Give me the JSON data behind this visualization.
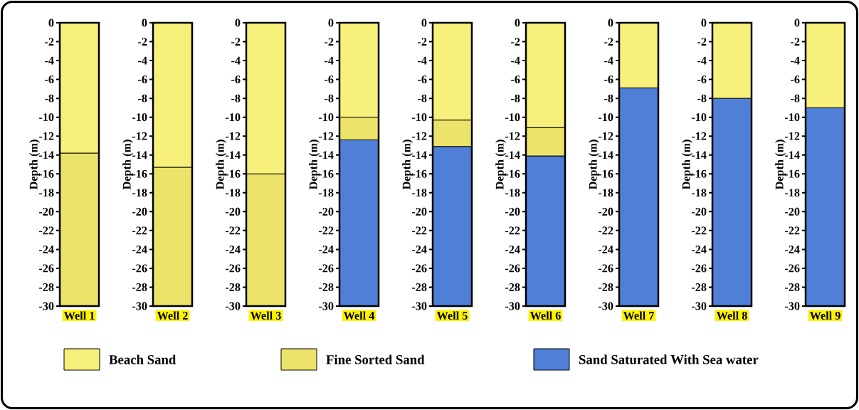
{
  "chart_data": [
    {
      "type": "bar",
      "stacked": true,
      "categories": [
        "Well 1"
      ],
      "ylabel": "Depth (m)",
      "ylim": [
        -30,
        0
      ],
      "yticks": [
        0,
        -2,
        -4,
        -6,
        -8,
        -10,
        -12,
        -14,
        -16,
        -18,
        -20,
        -22,
        -24,
        -26,
        -28,
        -30
      ],
      "series": [
        {
          "color": "#f7f07a",
          "values": [
            -13.8
          ]
        },
        {
          "color": "#ece36a",
          "values": [
            -16.2
          ]
        },
        {
          "color": "#4f7fd6",
          "values": [
            null
          ]
        }
      ]
    },
    {
      "type": "bar",
      "stacked": true,
      "categories": [
        "Well 2"
      ],
      "ylabel": "Depth (m)",
      "ylim": [
        -30,
        0
      ],
      "yticks": [
        0,
        -2,
        -4,
        -6,
        -8,
        -10,
        -12,
        -14,
        -16,
        -18,
        -20,
        -22,
        -24,
        -26,
        -28,
        -30
      ],
      "series": [
        {
          "color": "#f7f07a",
          "values": [
            -15.3
          ]
        },
        {
          "color": "#ece36a",
          "values": [
            -14.7
          ]
        },
        {
          "color": "#4f7fd6",
          "values": [
            null
          ]
        }
      ]
    },
    {
      "type": "bar",
      "stacked": true,
      "categories": [
        "Well 3"
      ],
      "ylabel": "Depth (m)",
      "ylim": [
        -30,
        0
      ],
      "yticks": [
        0,
        -2,
        -4,
        -6,
        -8,
        -10,
        -12,
        -14,
        -16,
        -18,
        -20,
        -22,
        -24,
        -26,
        -28,
        -30
      ],
      "series": [
        {
          "color": "#f7f07a",
          "values": [
            -16
          ]
        },
        {
          "color": "#ece36a",
          "values": [
            -14
          ]
        },
        {
          "color": "#4f7fd6",
          "values": [
            null
          ]
        }
      ]
    },
    {
      "type": "bar",
      "stacked": true,
      "legend": "bottom",
      "categories": [
        "Well 4"
      ],
      "ylabel": "Depth (m)",
      "ylim": [
        -30,
        0
      ],
      "yticks": [
        0,
        -2,
        -4,
        -6,
        -8,
        -10,
        -12,
        -14,
        -16,
        -18,
        -20,
        -22,
        -24,
        -26,
        -28,
        -30
      ],
      "series": [
        {
          "name": "Beach Sand",
          "color": "#f7f07a",
          "values": [
            -10
          ]
        },
        {
          "name": "Fine Sorted Sand",
          "color": "#ece36a",
          "values": [
            -2.4
          ]
        },
        {
          "name": "Sand Saturated With Sea water",
          "color": "#4f7fd6",
          "values": [
            -17.6
          ]
        }
      ]
    },
    {
      "type": "bar",
      "stacked": true,
      "categories": [
        "Well 5"
      ],
      "ylabel": "Depth (m)",
      "ylim": [
        -30,
        0
      ],
      "yticks": [
        0,
        -2,
        -4,
        -6,
        -8,
        -10,
        -12,
        -14,
        -16,
        -18,
        -20,
        -22,
        -24,
        -26,
        -28,
        -30
      ],
      "series": [
        {
          "color": "#f7f07a",
          "values": [
            -10.3
          ]
        },
        {
          "color": "#ece36a",
          "values": [
            -2.8
          ]
        },
        {
          "color": "#4f7fd6",
          "values": [
            -16.9
          ]
        }
      ]
    },
    {
      "type": "bar",
      "stacked": true,
      "categories": [
        "Well 6"
      ],
      "ylabel": "Depth (m)",
      "ylim": [
        -30,
        0
      ],
      "yticks": [
        0,
        -2,
        -4,
        -6,
        -8,
        -10,
        -12,
        -14,
        -16,
        -18,
        -20,
        -22,
        -24,
        -26,
        -28,
        -30
      ],
      "series": [
        {
          "color": "#f7f07a",
          "values": [
            -11.1
          ]
        },
        {
          "color": "#ece36a",
          "values": [
            -3
          ]
        },
        {
          "color": "#4f7fd6",
          "values": [
            -15.9
          ]
        }
      ]
    },
    {
      "type": "bar",
      "stacked": true,
      "categories": [
        "Well 7"
      ],
      "ylabel": "Depth (m)",
      "ylim": [
        -30,
        0
      ],
      "yticks": [
        0,
        -2,
        -4,
        -6,
        -8,
        -10,
        -12,
        -14,
        -16,
        -18,
        -20,
        -22,
        -24,
        -26,
        -28,
        -30
      ],
      "series": [
        {
          "color": "#f7f07a",
          "values": [
            -6.9
          ]
        },
        {
          "color": "#ece36a",
          "values": [
            null
          ]
        },
        {
          "color": "#4f7fd6",
          "values": [
            -23.1
          ]
        }
      ]
    },
    {
      "type": "bar",
      "stacked": true,
      "categories": [
        "Well 8"
      ],
      "ylabel": "Depth (m)",
      "ylim": [
        -30,
        0
      ],
      "yticks": [
        0,
        -2,
        -4,
        -6,
        -8,
        -10,
        -12,
        -14,
        -16,
        -18,
        -20,
        -22,
        -24,
        -26,
        -28,
        -30
      ],
      "series": [
        {
          "color": "#f7f07a",
          "values": [
            -8
          ]
        },
        {
          "color": "#ece36a",
          "values": [
            null
          ]
        },
        {
          "color": "#4f7fd6",
          "values": [
            -22
          ]
        }
      ]
    },
    {
      "type": "bar",
      "stacked": true,
      "categories": [
        "Well 9"
      ],
      "ylabel": "Depth (m)",
      "ylim": [
        -30,
        0
      ],
      "yticks": [
        0,
        -2,
        -4,
        -6,
        -8,
        -10,
        -12,
        -14,
        -16,
        -18,
        -20,
        -22,
        -24,
        -26,
        -28,
        -30
      ],
      "series": [
        {
          "color": "#f7f07a",
          "values": [
            -9
          ]
        },
        {
          "color": "#ece36a",
          "values": [
            null
          ]
        },
        {
          "color": "#4f7fd6",
          "values": [
            -21
          ]
        }
      ]
    }
  ]
}
